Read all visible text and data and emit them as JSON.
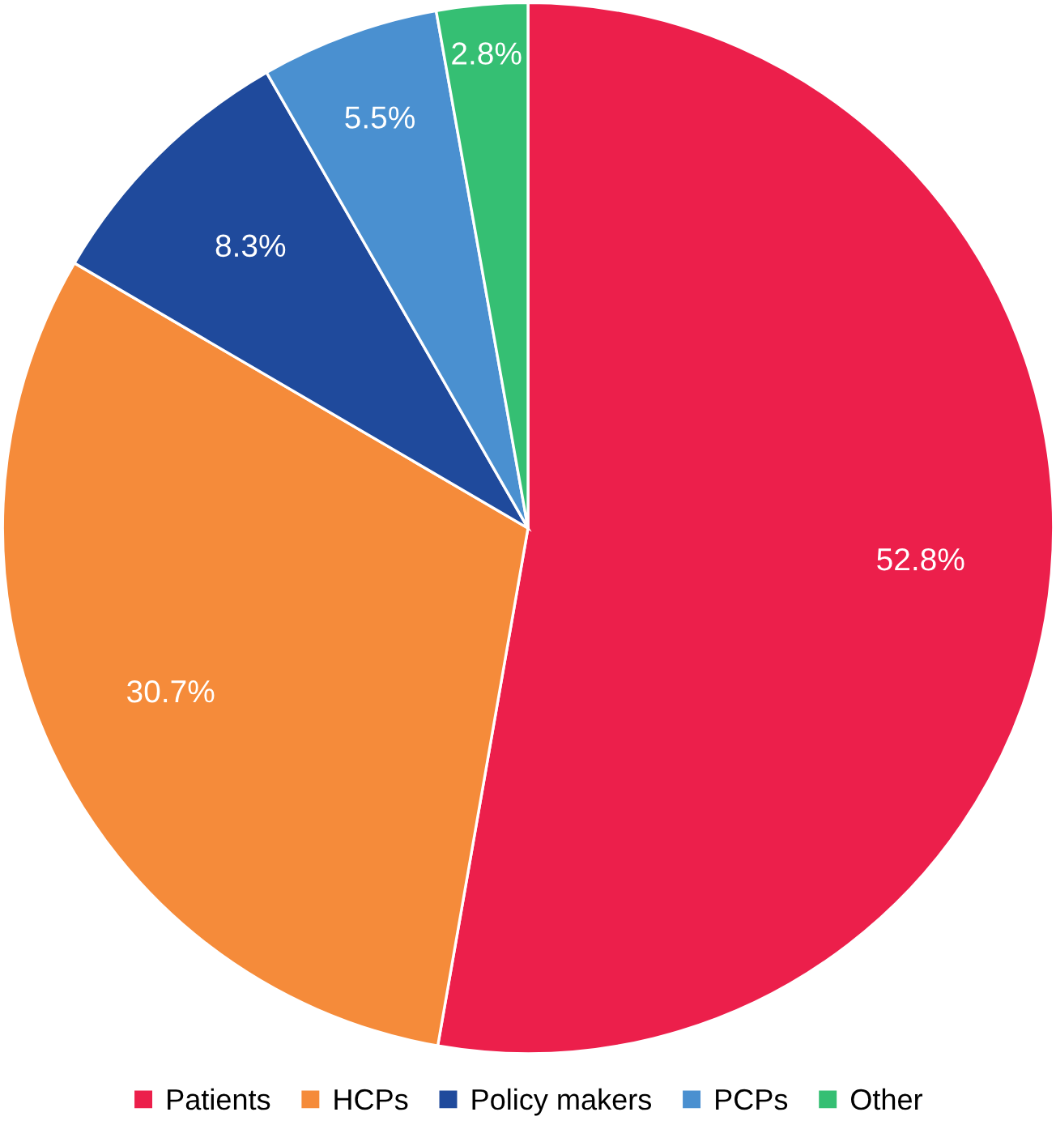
{
  "chart_data": {
    "type": "pie",
    "categories": [
      "Patients",
      "HCPs",
      "Policy makers",
      "PCPs",
      "Other"
    ],
    "values": [
      52.8,
      30.7,
      8.3,
      5.5,
      2.8
    ],
    "colors": [
      "#ec1f4b",
      "#f58b3a",
      "#1f4a9c",
      "#4a90d0",
      "#35bf73"
    ],
    "value_labels": [
      "52.8%",
      "30.7%",
      "8.3%",
      "5.5%",
      "2.8%"
    ],
    "legend": "bottom"
  }
}
